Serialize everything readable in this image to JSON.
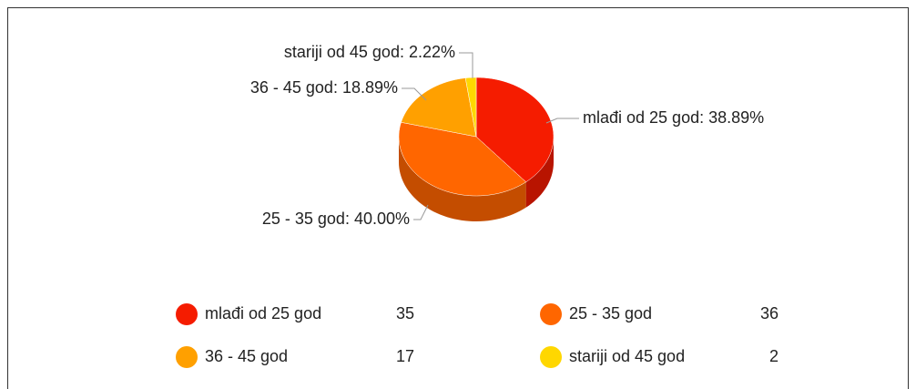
{
  "chart_data": {
    "type": "pie3d",
    "categories": [
      "mlađi od 25 god",
      "25 - 35 god",
      "36 - 45 god",
      "stariji od 45 god"
    ],
    "values": [
      35,
      36,
      17,
      2
    ],
    "percent": [
      38.89,
      40.0,
      18.89,
      2.22
    ],
    "slice_labels": [
      "mlađi od 25 god: 38.89%",
      "25 - 35 god: 40.00%",
      "36 - 45 god: 18.89%",
      "stariji od 45 god: 2.22%"
    ],
    "colors": [
      "#f51c00",
      "#ff6600",
      "#ffa000",
      "#ffd700"
    ],
    "side_colors": [
      "#b81400",
      "#c44d00",
      "#c47a00",
      "#c4a500"
    ]
  }
}
